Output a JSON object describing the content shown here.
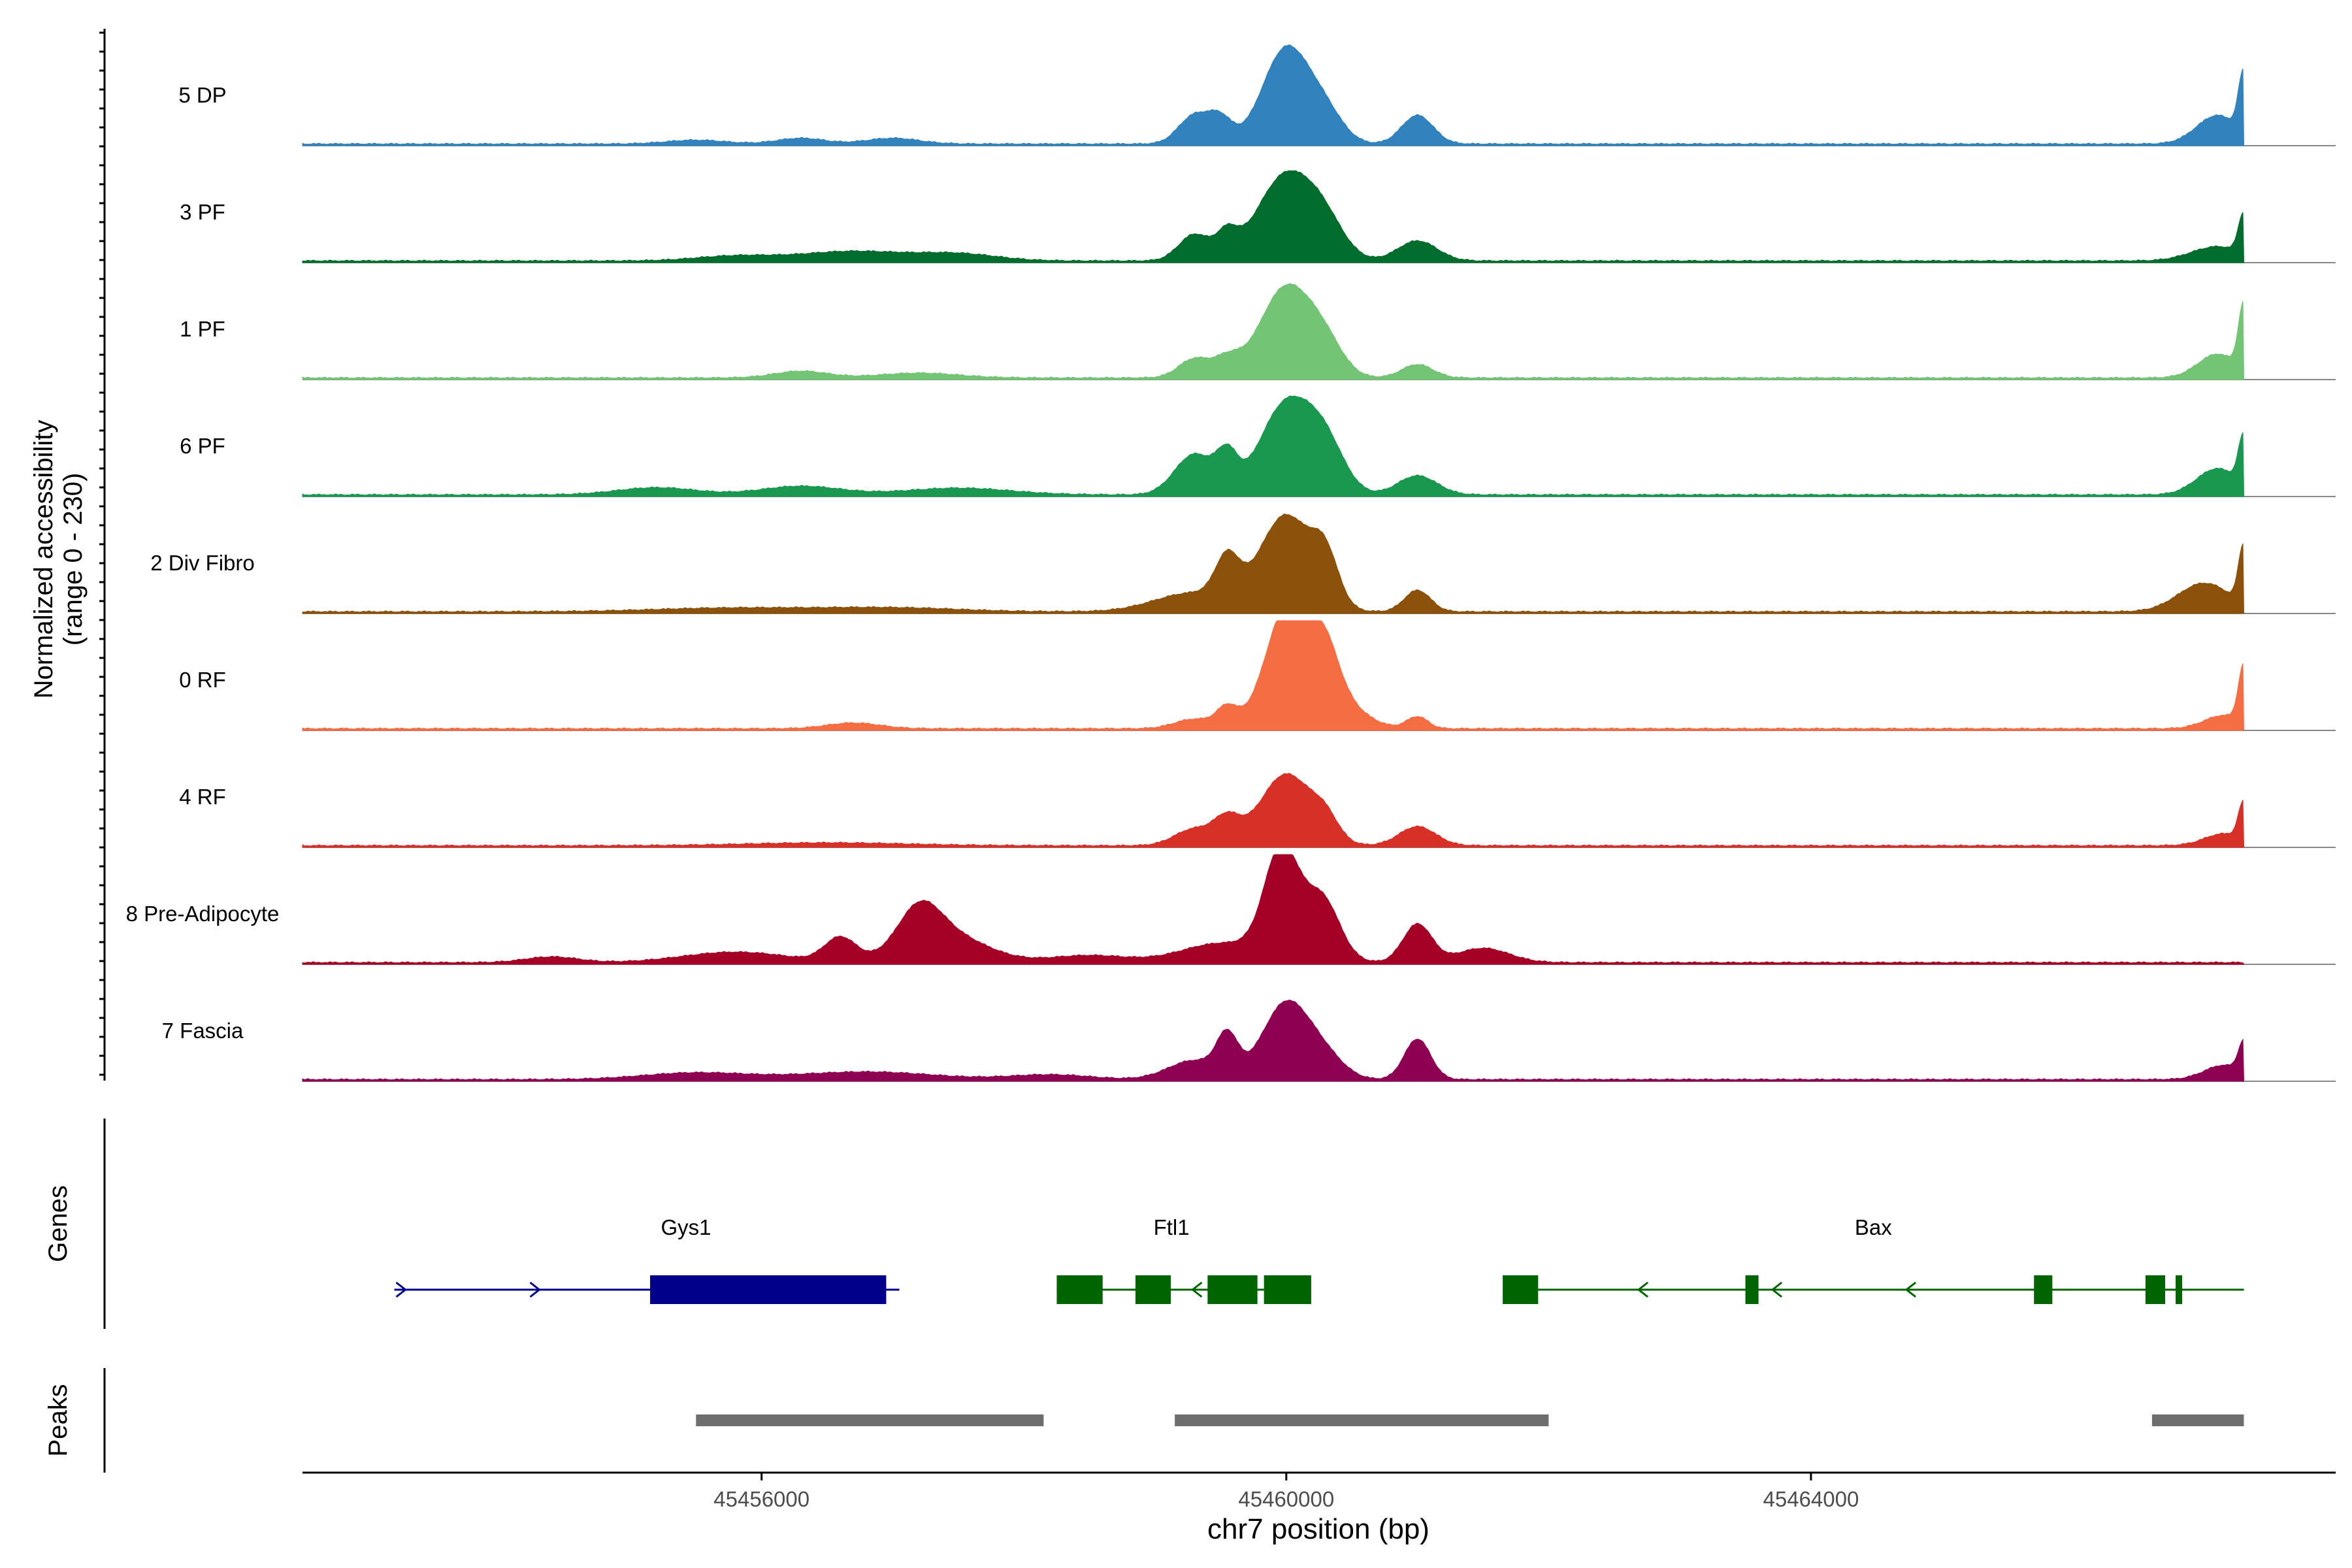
{
  "chart_data": {
    "type": "area",
    "title": "",
    "region": {
      "chrom": "chr7",
      "start": 45452500,
      "end": 45468000
    },
    "xlabel": "chr7 position (bp)",
    "ylabel_line1": "Normalized accessibility",
    "ylabel_line2": "(range 0 - 230)",
    "ylim": [
      0,
      230
    ],
    "x_ticks": [
      {
        "value": 45456000,
        "label": "45456000"
      },
      {
        "value": 45460000,
        "label": "45460000"
      },
      {
        "value": 45464000,
        "label": "45464000"
      }
    ],
    "track_end": 45467300,
    "tracks": [
      {
        "label": "5 DP",
        "color": "#3182BD",
        "peaks": [
          [
            45460000,
            200,
            180
          ],
          [
            45459500,
            48,
            90
          ],
          [
            45459300,
            60,
            120
          ],
          [
            45460300,
            55,
            140
          ],
          [
            45461000,
            60,
            120
          ],
          [
            45457000,
            12,
            200
          ],
          [
            45456300,
            12,
            180
          ],
          [
            45455500,
            8,
            220
          ],
          [
            45467100,
            60,
            160
          ],
          [
            45467300,
            130,
            40
          ]
        ]
      },
      {
        "label": "3 PF",
        "color": "#006D2C",
        "peaks": [
          [
            45460000,
            180,
            220
          ],
          [
            45459550,
            48,
            80
          ],
          [
            45459300,
            55,
            120
          ],
          [
            45460300,
            55,
            150
          ],
          [
            45461000,
            42,
            150
          ],
          [
            45456700,
            20,
            400
          ],
          [
            45457500,
            14,
            300
          ],
          [
            45455800,
            10,
            300
          ],
          [
            45467100,
            30,
            200
          ],
          [
            45467300,
            85,
            40
          ]
        ]
      },
      {
        "label": "1 PF",
        "color": "#74C476",
        "peaks": [
          [
            45460000,
            190,
            200
          ],
          [
            45459550,
            35,
            100
          ],
          [
            45459300,
            40,
            120
          ],
          [
            45460300,
            55,
            140
          ],
          [
            45461000,
            28,
            120
          ],
          [
            45456300,
            14,
            200
          ],
          [
            45457200,
            10,
            300
          ],
          [
            45467100,
            50,
            150
          ],
          [
            45467300,
            140,
            40
          ]
        ]
      },
      {
        "label": "6 PF",
        "color": "#1A9850",
        "peaks": [
          [
            45460000,
            190,
            200
          ],
          [
            45459300,
            85,
            150
          ],
          [
            45459550,
            70,
            80
          ],
          [
            45460300,
            90,
            150
          ],
          [
            45461000,
            40,
            150
          ],
          [
            45455200,
            15,
            300
          ],
          [
            45456300,
            18,
            300
          ],
          [
            45457500,
            14,
            400
          ],
          [
            45467100,
            55,
            160
          ],
          [
            45467300,
            105,
            40
          ]
        ]
      },
      {
        "label": "2 Div Fibro",
        "color": "#8C510A",
        "peaks": [
          [
            45460000,
            200,
            200
          ],
          [
            45459300,
            40,
            300
          ],
          [
            45459550,
            85,
            90
          ],
          [
            45460300,
            90,
            100
          ],
          [
            45461000,
            45,
            100
          ],
          [
            45455800,
            8,
            600
          ],
          [
            45457000,
            8,
            500
          ],
          [
            45467000,
            60,
            200
          ],
          [
            45467300,
            125,
            40
          ]
        ]
      },
      {
        "label": "0 RF",
        "color": "#F46D43",
        "peaks": [
          [
            45460000,
            180,
            160
          ],
          [
            45460200,
            120,
            250
          ],
          [
            45459550,
            40,
            80
          ],
          [
            45459300,
            20,
            150
          ],
          [
            45460300,
            70,
            100
          ],
          [
            45461000,
            25,
            80
          ],
          [
            45456700,
            12,
            200
          ],
          [
            45467150,
            28,
            150
          ],
          [
            45467300,
            120,
            40
          ]
        ]
      },
      {
        "label": "4 RF",
        "color": "#D73027",
        "peaks": [
          [
            45460000,
            150,
            200
          ],
          [
            45459550,
            50,
            100
          ],
          [
            45459300,
            35,
            150
          ],
          [
            45460300,
            40,
            100
          ],
          [
            45461000,
            40,
            140
          ],
          [
            45456500,
            6,
            600
          ],
          [
            45467150,
            25,
            150
          ],
          [
            45467300,
            80,
            40
          ]
        ]
      },
      {
        "label": "8 Pre-Adipocyte",
        "color": "#A50026",
        "peaks": [
          [
            45459950,
            160,
            120
          ],
          [
            45460100,
            100,
            200
          ],
          [
            45459500,
            40,
            300
          ],
          [
            45460300,
            75,
            120
          ],
          [
            45461000,
            80,
            110
          ],
          [
            45457200,
            80,
            160
          ],
          [
            45457400,
            60,
            300
          ],
          [
            45456600,
            50,
            120
          ],
          [
            45455800,
            22,
            400
          ],
          [
            45461500,
            30,
            200
          ],
          [
            45454400,
            12,
            200
          ],
          [
            45458500,
            15,
            300
          ]
        ]
      },
      {
        "label": "7 Fascia",
        "color": "#8E0152",
        "peaks": [
          [
            45460000,
            160,
            180
          ],
          [
            45459550,
            80,
            80
          ],
          [
            45459300,
            40,
            200
          ],
          [
            45460300,
            40,
            150
          ],
          [
            45461000,
            85,
            100
          ],
          [
            45455500,
            14,
            400
          ],
          [
            45456800,
            16,
            500
          ],
          [
            45458200,
            10,
            300
          ],
          [
            45467150,
            30,
            150
          ],
          [
            45467300,
            65,
            40
          ]
        ]
      }
    ],
    "genes_label": "Genes",
    "genes": [
      {
        "name": "Gys1",
        "strand": "+",
        "color": "#00008B",
        "start": 45453200,
        "end": 45457050,
        "exons": [
          [
            45455150,
            45456950
          ]
        ]
      },
      {
        "name": "Ftl1",
        "strand": "-",
        "color": "#006400",
        "start": 45458250,
        "end": 45460000,
        "exons": [
          [
            45458250,
            45458600
          ],
          [
            45458850,
            45459120
          ],
          [
            45459400,
            45459780
          ],
          [
            45459830,
            45460190
          ]
        ]
      },
      {
        "name": "Bax",
        "strand": "-",
        "color": "#006400",
        "start": 45461650,
        "end": 45467300,
        "exons": [
          [
            45461650,
            45461920
          ],
          [
            45463500,
            45463600
          ],
          [
            45465700,
            45465840
          ],
          [
            45466550,
            45466700
          ],
          [
            45466780,
            45466830
          ]
        ]
      }
    ],
    "peaks_label": "Peaks",
    "peak_regions": [
      [
        45455500,
        45458150
      ],
      [
        45459150,
        45462000
      ],
      [
        45466600,
        45467300
      ]
    ]
  }
}
